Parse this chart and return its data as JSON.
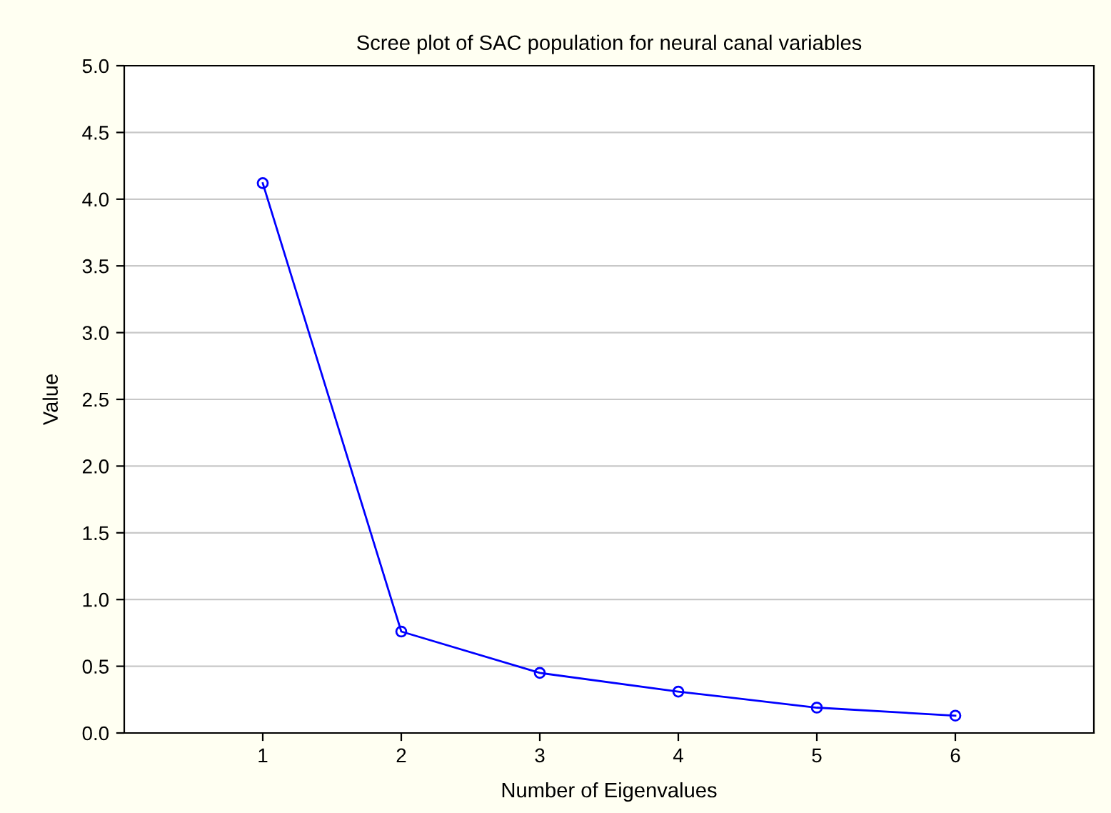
{
  "chart_data": {
    "type": "line",
    "title": "Scree plot of SAC population for neural canal variables",
    "xlabel": "Number of Eigenvalues",
    "ylabel": "Value",
    "x": [
      1,
      2,
      3,
      4,
      5,
      6
    ],
    "series": [
      {
        "color": "#0000ff",
        "values": [
          4.12,
          0.76,
          0.45,
          0.31,
          0.19,
          0.13
        ]
      }
    ],
    "xlim": [
      0,
      7
    ],
    "xticks": [
      1,
      2,
      3,
      4,
      5,
      6
    ],
    "ylim": [
      0,
      5
    ],
    "yticks": [
      {
        "value": 0,
        "label": "0.0"
      },
      {
        "value": 0.5,
        "label": "0.5"
      },
      {
        "value": 1,
        "label": "1.0"
      },
      {
        "value": 1.5,
        "label": "1.5"
      },
      {
        "value": 2,
        "label": "2.0"
      },
      {
        "value": 2.5,
        "label": "2.5"
      },
      {
        "value": 3,
        "label": "3.0"
      },
      {
        "value": 3.5,
        "label": "3.5"
      },
      {
        "value": 4,
        "label": "4.0"
      },
      {
        "value": 4.5,
        "label": "4.5"
      },
      {
        "value": 5,
        "label": "5.0"
      }
    ],
    "grid": "y",
    "marker": "circle",
    "line_style": "solid"
  }
}
